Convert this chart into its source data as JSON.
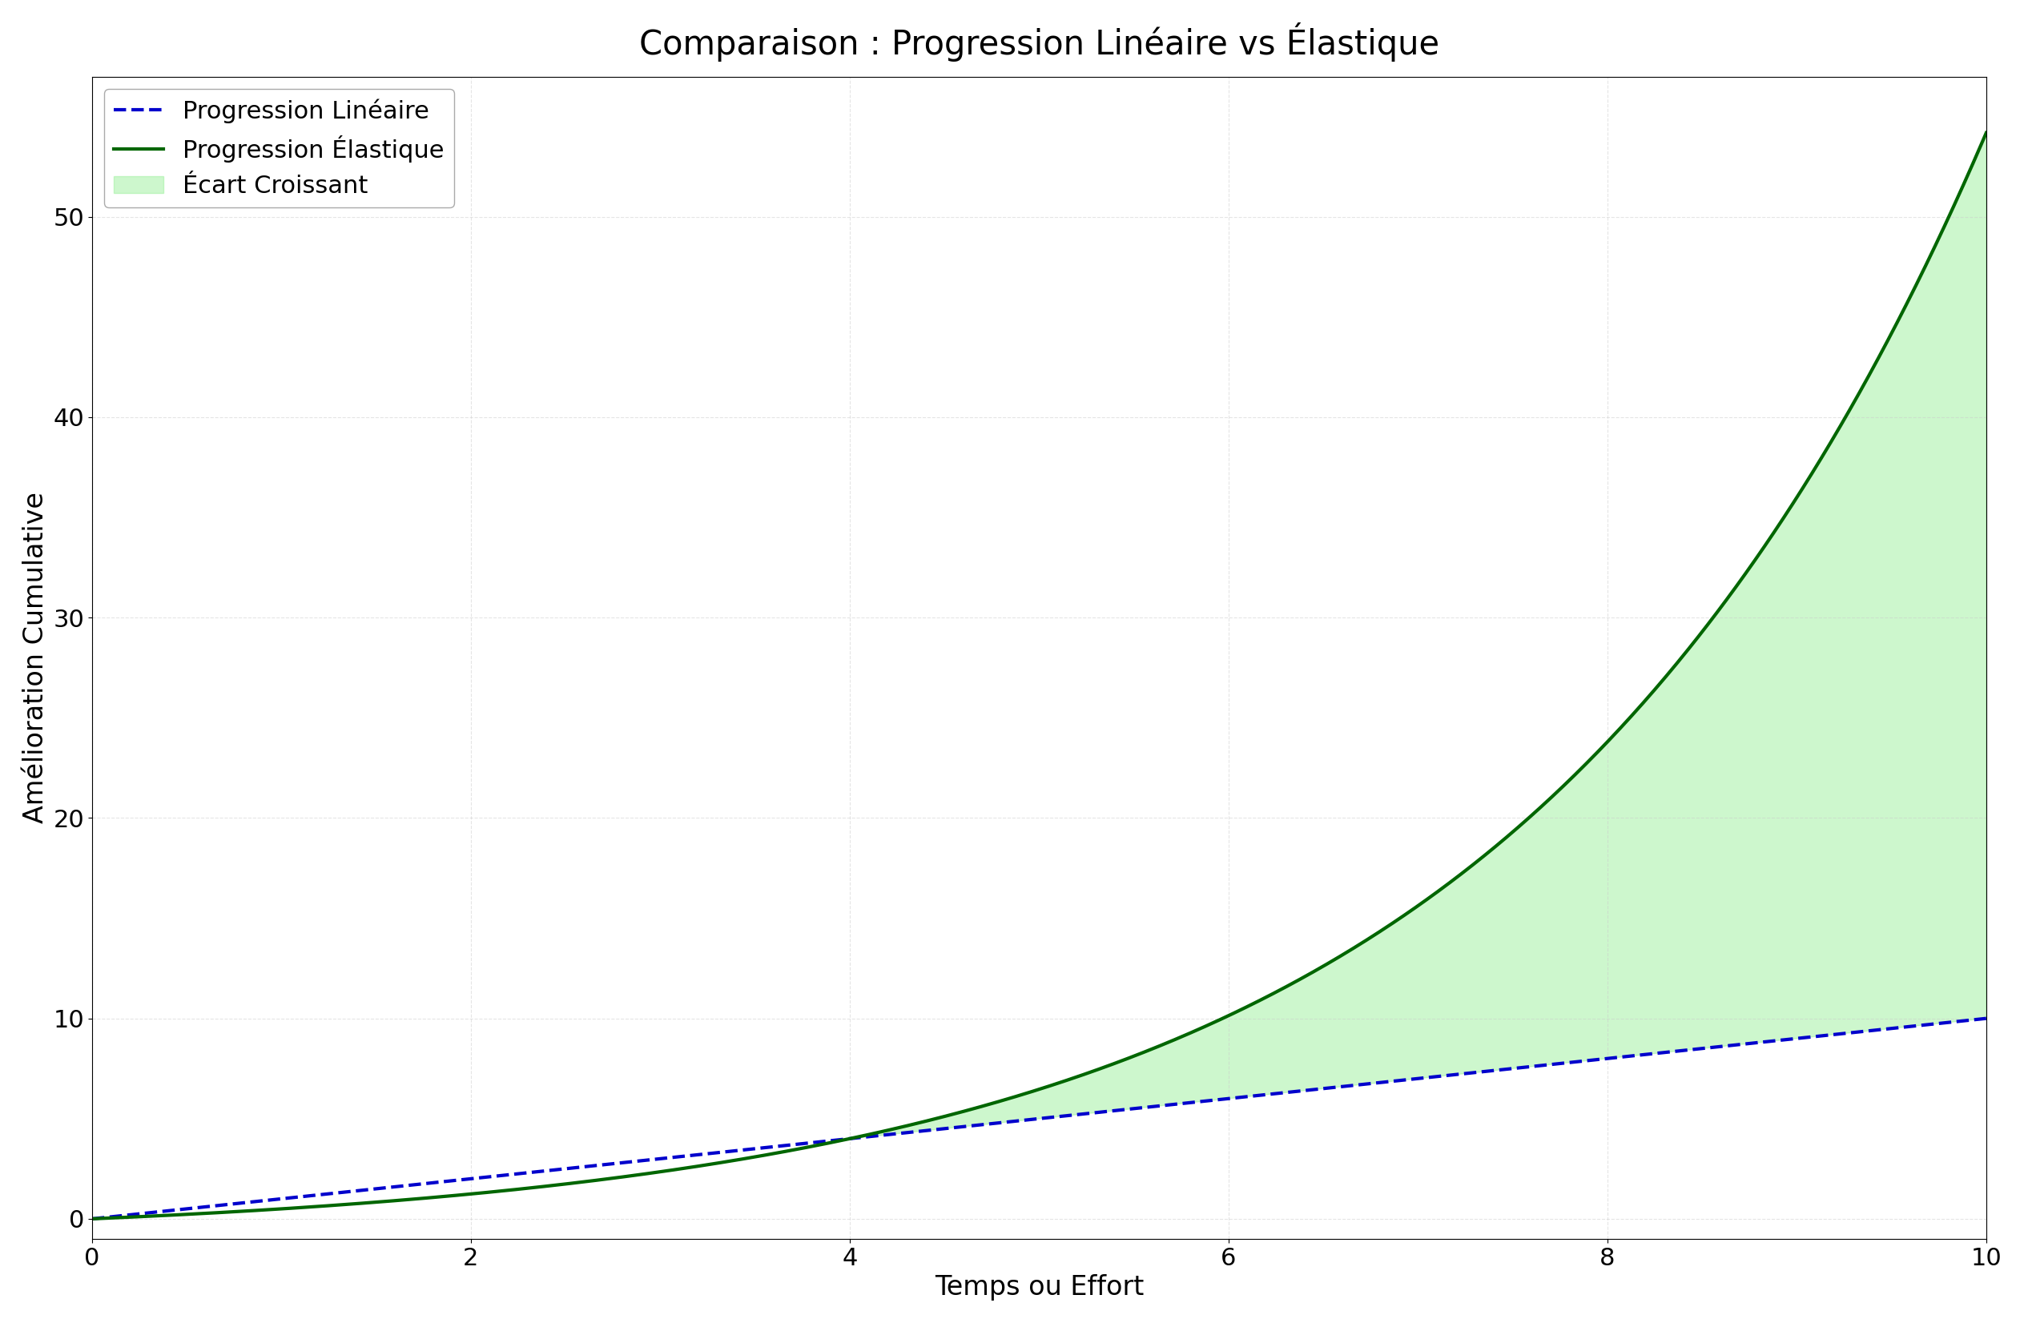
{
  "title": "Comparaison : Progression Linéaire vs Élastique",
  "xlabel": "Temps ou Effort",
  "ylabel": "Amélioration Cumulative",
  "x_min": 0,
  "x_max": 10,
  "y_min": -1,
  "y_max": 57,
  "linear_label": "Progression Linéaire",
  "elastic_label": "Progression Élastique",
  "fill_label": "Écart Croissant",
  "linear_color": "#0000cc",
  "elastic_color": "#006600",
  "fill_color": "#90ee90",
  "fill_alpha": 0.45,
  "linear_linestyle": "--",
  "elastic_linestyle": "-",
  "linear_linewidth": 3.0,
  "elastic_linewidth": 3.0,
  "title_fontsize": 30,
  "label_fontsize": 24,
  "tick_fontsize": 22,
  "legend_fontsize": 22,
  "grid_alpha": 0.5,
  "grid_linestyle": "--",
  "grid_color": "#cccccc",
  "bg_color": "#ffffff",
  "elastic_a": 0.053,
  "elastic_b": 3.2
}
